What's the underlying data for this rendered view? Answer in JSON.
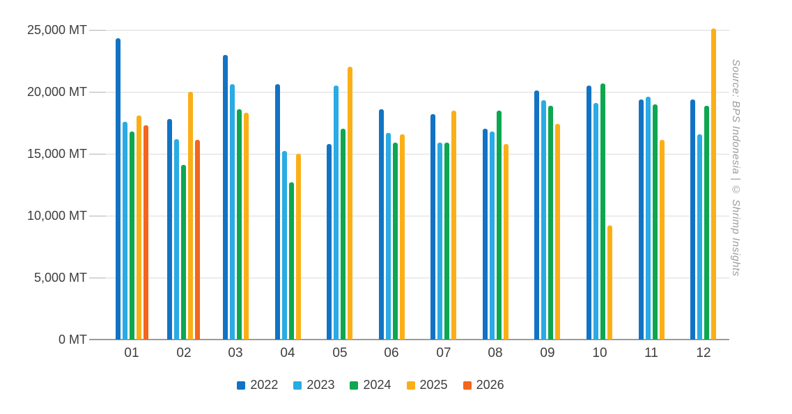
{
  "chart_data": {
    "type": "bar",
    "title": "",
    "unit": "MT",
    "categories": [
      "01",
      "02",
      "03",
      "04",
      "05",
      "06",
      "07",
      "08",
      "09",
      "10",
      "11",
      "12"
    ],
    "series": [
      {
        "name": "2022",
        "color": "#1273c4",
        "values": [
          24300,
          17800,
          23000,
          20600,
          15800,
          18600,
          18200,
          17000,
          20100,
          20500,
          19400,
          19400
        ]
      },
      {
        "name": "2023",
        "color": "#2aabe4",
        "values": [
          17600,
          16200,
          20600,
          15200,
          20500,
          16700,
          15900,
          16800,
          19300,
          19100,
          19600,
          16600
        ]
      },
      {
        "name": "2024",
        "color": "#0da750",
        "values": [
          16800,
          14100,
          18600,
          12700,
          17000,
          15900,
          15900,
          18500,
          18900,
          20700,
          19000,
          18900
        ]
      },
      {
        "name": "2025",
        "color": "#fbaf17",
        "values": [
          18100,
          20000,
          18300,
          15000,
          22000,
          16600,
          18500,
          15800,
          17400,
          9200,
          16100,
          25100
        ]
      },
      {
        "name": "2026",
        "color": "#f4651d",
        "values": [
          17300,
          16100,
          null,
          null,
          null,
          null,
          null,
          null,
          null,
          null,
          null,
          null
        ]
      }
    ],
    "ylim": [
      0,
      25000
    ],
    "ytick_step": 5000,
    "ytick_labels": [
      "0 MT",
      "5,000 MT",
      "10,000 MT",
      "15,000 MT",
      "20,000 MT",
      "25,000 MT"
    ],
    "grid": true,
    "legend_position": "bottom"
  },
  "source_note": "Source: BPS Indonesia | © Shrimp Insights",
  "colors": {
    "gridline": "#dcdcdc",
    "axis_line": "#9b9b9b",
    "text": "#3d3d3d",
    "source_text": "#9c9c9c",
    "background": "#ffffff"
  }
}
